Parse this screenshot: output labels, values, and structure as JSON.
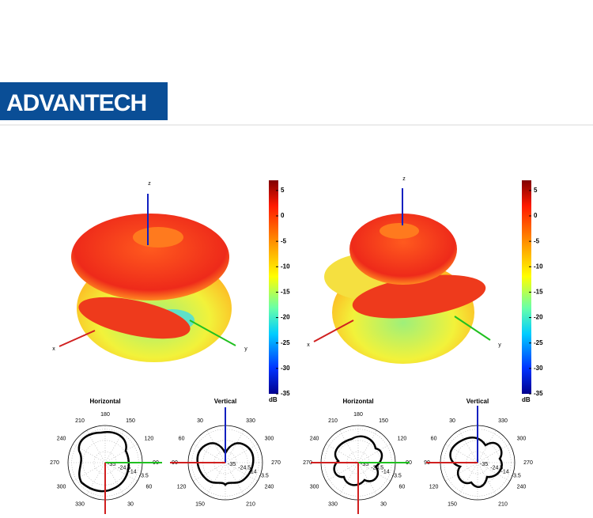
{
  "header": {
    "logo": "ADVANTECH"
  },
  "patterns": [
    {
      "axes": [
        "x",
        "y",
        "z"
      ],
      "colorbar": {
        "ticks": [
          5,
          0,
          -5,
          -10,
          -15,
          -20,
          -25,
          -30,
          -35
        ],
        "lim": [
          -35,
          7
        ],
        "unit": "dB"
      },
      "polar": [
        {
          "title": "Horizontal",
          "theta_offset": 180,
          "theta_direction": -1,
          "angle_ticks": [
            180,
            150,
            120,
            90,
            60,
            30,
            330,
            300,
            270,
            240,
            210
          ],
          "radial_ticks": [
            -35,
            -24.5,
            -14,
            -3.5
          ],
          "rlim": [
            -35,
            0
          ]
        },
        {
          "title": "Vertical",
          "theta_offset": 0,
          "theta_direction": -1,
          "angle_ticks": [
            30,
            330,
            300,
            270,
            240,
            210,
            150,
            120,
            90,
            60
          ],
          "radial_ticks": [
            -35,
            -24.5,
            -14,
            -3.5
          ],
          "rlim": [
            -35,
            0
          ]
        }
      ]
    },
    {
      "axes": [
        "x",
        "y",
        "z"
      ],
      "colorbar": {
        "ticks": [
          5,
          0,
          -5,
          -10,
          -15,
          -20,
          -25,
          -30,
          -35
        ],
        "lim": [
          -35,
          7
        ],
        "unit": "dB"
      },
      "polar": [
        {
          "title": "Horizontal",
          "theta_offset": 180,
          "theta_direction": -1,
          "angle_ticks": [
            180,
            150,
            120,
            90,
            60,
            30,
            330,
            300,
            270,
            240,
            210
          ],
          "radial_ticks": [
            -35,
            -24.5,
            -14,
            -3.5
          ],
          "rlim": [
            -35,
            0
          ]
        },
        {
          "title": "Vertical",
          "theta_offset": 0,
          "theta_direction": -1,
          "angle_ticks": [
            30,
            330,
            300,
            270,
            240,
            210,
            150,
            120,
            90,
            60
          ],
          "radial_ticks": [
            -35,
            -24.5,
            -14,
            -3.5
          ],
          "rlim": [
            -35,
            0
          ]
        }
      ]
    }
  ]
}
